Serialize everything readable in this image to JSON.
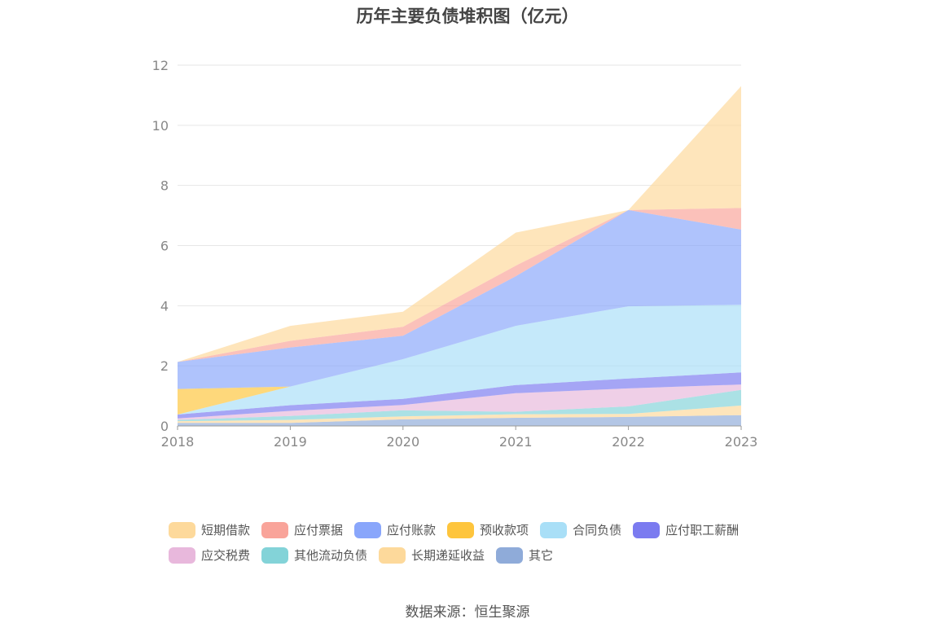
{
  "chart_data": {
    "type": "area",
    "stacked": true,
    "title": "历年主要负债堆积图（亿元）",
    "xlabel": "",
    "ylabel": "",
    "x": [
      "2018",
      "2019",
      "2020",
      "2021",
      "2022",
      "2023"
    ],
    "ylim": [
      0,
      12
    ],
    "yticks": [
      "0",
      "2",
      "4",
      "6",
      "8",
      "10",
      "12"
    ],
    "grid": true,
    "legend_position": "bottom",
    "series": [
      {
        "name": "其它",
        "color": "#8fabd9",
        "values": [
          0.1,
          0.1,
          0.22,
          0.27,
          0.3,
          0.36
        ]
      },
      {
        "name": "长期递延收益",
        "color": "#fdd99b",
        "values": [
          0.06,
          0.1,
          0.1,
          0.12,
          0.1,
          0.32
        ]
      },
      {
        "name": "其他流动负债",
        "color": "#83d3d8",
        "values": [
          0.04,
          0.13,
          0.2,
          0.08,
          0.25,
          0.52
        ]
      },
      {
        "name": "应交税费",
        "color": "#e8b8dc",
        "values": [
          0.05,
          0.17,
          0.18,
          0.62,
          0.6,
          0.18
        ]
      },
      {
        "name": "应付职工薪酬",
        "color": "#7b7bf0",
        "values": [
          0.13,
          0.19,
          0.2,
          0.27,
          0.33,
          0.4
        ]
      },
      {
        "name": "合同负债",
        "color": "#a9dff7",
        "values": [
          0.0,
          0.62,
          1.32,
          1.97,
          2.4,
          2.25
        ]
      },
      {
        "name": "预收款项",
        "color": "#fec53d",
        "values": [
          0.85,
          0.0,
          0.0,
          0.0,
          0.0,
          0.0
        ]
      },
      {
        "name": "应付账款",
        "color": "#89a6fb",
        "values": [
          0.9,
          1.3,
          0.78,
          1.65,
          3.2,
          2.5
        ]
      },
      {
        "name": "应付票据",
        "color": "#f9a49a",
        "values": [
          0.0,
          0.22,
          0.3,
          0.35,
          0.0,
          0.72
        ]
      },
      {
        "name": "短期借款",
        "color": "#fdd99b",
        "values": [
          0.0,
          0.5,
          0.5,
          1.1,
          0.0,
          4.05
        ]
      }
    ]
  },
  "legend": {
    "rows": [
      [
        {
          "label": "短期借款",
          "color": "#fdd99b"
        },
        {
          "label": "应付票据",
          "color": "#f9a49a"
        },
        {
          "label": "应付账款",
          "color": "#89a6fb"
        },
        {
          "label": "预收款项",
          "color": "#fec53d"
        },
        {
          "label": "合同负债",
          "color": "#a9dff7"
        },
        {
          "label": "应付职工薪酬",
          "color": "#7b7bf0"
        }
      ],
      [
        {
          "label": "应交税费",
          "color": "#e8b8dc"
        },
        {
          "label": "其他流动负债",
          "color": "#83d3d8"
        },
        {
          "label": "长期递延收益",
          "color": "#fdd99b"
        },
        {
          "label": "其它",
          "color": "#8fabd9"
        }
      ]
    ]
  },
  "source": "数据来源：恒生聚源"
}
